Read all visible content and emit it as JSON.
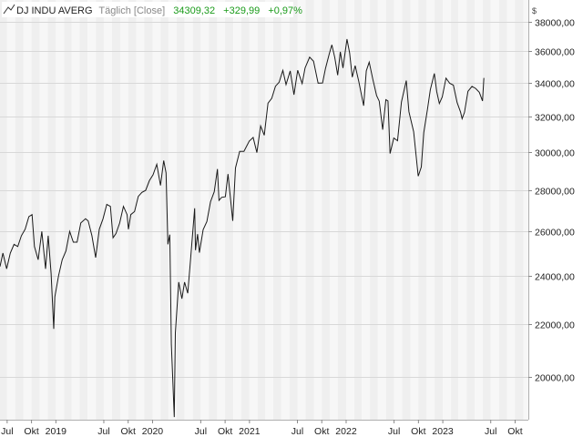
{
  "header": {
    "symbol": "DJ INDU AVERG",
    "period": "Täglich [Close]",
    "last": "34309,32",
    "change": "+329,99",
    "change_pct": "+0,97%",
    "currency": "$"
  },
  "colors": {
    "line": "#1a1a1a",
    "positive": "#1a9b1a",
    "muted": "#888888",
    "band_a": "#efefef",
    "band_b": "#f7f7f7",
    "grid": "#d8d8d8"
  },
  "chart_data": {
    "type": "line",
    "scale": "log",
    "ylim": [
      18500,
      39500
    ],
    "xlim": [
      "2018-06-04",
      "2023-11-20"
    ],
    "y_ticks": [
      20000,
      22000,
      24000,
      26000,
      28000,
      30000,
      32000,
      34000,
      36000,
      38000
    ],
    "y_tick_labels": [
      "20000,00",
      "22000,00",
      "24000,00",
      "26000,00",
      "28000,00",
      "30000,00",
      "32000,00",
      "34000,00",
      "36000,00",
      "38000,00"
    ],
    "x_ticks": [
      {
        "label": "Jul",
        "date": "2018-07-01"
      },
      {
        "label": "Okt",
        "date": "2018-10-01"
      },
      {
        "label": "2019",
        "date": "2019-01-01"
      },
      {
        "label": "Jul",
        "date": "2019-07-01"
      },
      {
        "label": "Okt",
        "date": "2019-10-01"
      },
      {
        "label": "2020",
        "date": "2020-01-01"
      },
      {
        "label": "Jul",
        "date": "2020-07-01"
      },
      {
        "label": "Okt",
        "date": "2020-10-01"
      },
      {
        "label": "2021",
        "date": "2021-01-01"
      },
      {
        "label": "Jul",
        "date": "2021-07-01"
      },
      {
        "label": "Okt",
        "date": "2021-10-01"
      },
      {
        "label": "2022",
        "date": "2022-01-01"
      },
      {
        "label": "Jul",
        "date": "2022-07-01"
      },
      {
        "label": "Okt",
        "date": "2022-10-01"
      },
      {
        "label": "2023",
        "date": "2023-01-01"
      },
      {
        "label": "Jul",
        "date": "2023-07-01"
      },
      {
        "label": "Okt",
        "date": "2023-10-01"
      }
    ],
    "series": [
      {
        "x": [
          "2018-06-04",
          "2018-06-15",
          "2018-06-29",
          "2018-07-13",
          "2018-07-27",
          "2018-08-10",
          "2018-08-24",
          "2018-09-07",
          "2018-09-21",
          "2018-10-03",
          "2018-10-12",
          "2018-10-26",
          "2018-11-09",
          "2018-11-23",
          "2018-12-03",
          "2018-12-14",
          "2018-12-24",
          "2018-12-28",
          "2019-01-11",
          "2019-01-25",
          "2019-02-08",
          "2019-02-22",
          "2019-03-08",
          "2019-03-22",
          "2019-04-05",
          "2019-04-23",
          "2019-05-03",
          "2019-05-17",
          "2019-05-31",
          "2019-06-14",
          "2019-06-28",
          "2019-07-12",
          "2019-07-26",
          "2019-08-05",
          "2019-08-16",
          "2019-08-30",
          "2019-09-13",
          "2019-09-27",
          "2019-10-02",
          "2019-10-11",
          "2019-10-25",
          "2019-11-08",
          "2019-11-22",
          "2019-12-06",
          "2019-12-20",
          "2020-01-03",
          "2020-01-17",
          "2020-01-31",
          "2020-02-12",
          "2020-02-21",
          "2020-02-28",
          "2020-03-06",
          "2020-03-12",
          "2020-03-16",
          "2020-03-23",
          "2020-03-27",
          "2020-04-09",
          "2020-04-21",
          "2020-05-01",
          "2020-05-13",
          "2020-05-22",
          "2020-06-08",
          "2020-06-11",
          "2020-06-19",
          "2020-06-26",
          "2020-07-10",
          "2020-07-24",
          "2020-08-07",
          "2020-08-21",
          "2020-09-02",
          "2020-09-08",
          "2020-09-18",
          "2020-10-02",
          "2020-10-12",
          "2020-10-30",
          "2020-11-09",
          "2020-11-25",
          "2020-12-11",
          "2020-12-31",
          "2021-01-15",
          "2021-01-29",
          "2021-02-12",
          "2021-02-26",
          "2021-03-12",
          "2021-03-26",
          "2021-04-09",
          "2021-04-23",
          "2021-05-07",
          "2021-05-19",
          "2021-06-04",
          "2021-06-18",
          "2021-07-02",
          "2021-07-19",
          "2021-07-30",
          "2021-08-16",
          "2021-08-31",
          "2021-09-17",
          "2021-10-04",
          "2021-10-15",
          "2021-10-29",
          "2021-11-08",
          "2021-11-19",
          "2021-11-30",
          "2021-12-10",
          "2021-12-20",
          "2022-01-04",
          "2022-01-14",
          "2022-01-24",
          "2022-02-04",
          "2022-02-18",
          "2022-03-08",
          "2022-03-18",
          "2022-03-29",
          "2022-04-12",
          "2022-04-26",
          "2022-05-06",
          "2022-05-19",
          "2022-05-31",
          "2022-06-08",
          "2022-06-16",
          "2022-06-30",
          "2022-07-14",
          "2022-07-29",
          "2022-08-16",
          "2022-08-26",
          "2022-09-13",
          "2022-09-30",
          "2022-10-12",
          "2022-10-21",
          "2022-11-04",
          "2022-11-15",
          "2022-11-30",
          "2022-12-09",
          "2022-12-19",
          "2022-12-30",
          "2023-01-13",
          "2023-01-27",
          "2023-02-10",
          "2023-02-24",
          "2023-03-09",
          "2023-03-15",
          "2023-03-24",
          "2023-04-06",
          "2023-04-21",
          "2023-05-05",
          "2023-05-19",
          "2023-05-31",
          "2023-06-05"
        ],
        "y": [
          24400,
          25000,
          24300,
          25000,
          25400,
          25300,
          25800,
          26100,
          26700,
          26800,
          25300,
          24700,
          26000,
          24300,
          25800,
          24100,
          21800,
          23100,
          24000,
          24700,
          25100,
          26000,
          25500,
          25500,
          26400,
          26600,
          26500,
          25800,
          24800,
          26100,
          26600,
          27300,
          27200,
          25700,
          25900,
          26400,
          27200,
          26800,
          26100,
          26800,
          26950,
          27700,
          27900,
          28000,
          28500,
          28800,
          29350,
          28250,
          29550,
          28900,
          25400,
          25850,
          21200,
          20200,
          18590,
          21640,
          23720,
          23020,
          23720,
          23250,
          24470,
          27110,
          25130,
          25870,
          25020,
          26080,
          26470,
          27430,
          27930,
          29100,
          27500,
          27650,
          27680,
          28840,
          26500,
          29160,
          30050,
          30050,
          30610,
          30810,
          29980,
          31460,
          30930,
          32780,
          33070,
          33800,
          34040,
          34780,
          33900,
          34750,
          33290,
          34790,
          33960,
          34940,
          35620,
          35360,
          33990,
          34000,
          34900,
          35820,
          36430,
          35600,
          34480,
          35970,
          34930,
          36800,
          35900,
          34360,
          35080,
          34080,
          32630,
          34750,
          35300,
          34220,
          33240,
          32900,
          31250,
          32990,
          32910,
          29930,
          30780,
          30630,
          32850,
          34150,
          32280,
          31130,
          28730,
          29210,
          31080,
          32400,
          33590,
          34590,
          33480,
          32760,
          33150,
          34300,
          33980,
          33870,
          32820,
          32250,
          31870,
          32240,
          33490,
          33790,
          33670,
          33430,
          32910,
          34310
        ]
      }
    ]
  }
}
